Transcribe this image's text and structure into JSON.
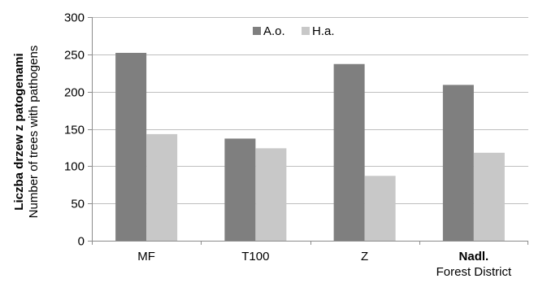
{
  "chart_data": {
    "type": "bar",
    "categories": [
      "MF",
      "T100",
      "Z",
      "Nadl."
    ],
    "category_sublabels": [
      "",
      "",
      "",
      "Forest District"
    ],
    "bold_categories": [
      "Nadl."
    ],
    "series": [
      {
        "name": "A.o.",
        "values": [
          252,
          137,
          237,
          209
        ],
        "color": "#7f7f7f"
      },
      {
        "name": "H.a.",
        "values": [
          143,
          124,
          87,
          118
        ],
        "color": "#c8c8c8"
      }
    ],
    "ylabel": "Liczba drzew z patogenami",
    "ylabel_secondary": "Number of trees with pathogens",
    "ylim": [
      0,
      300
    ],
    "yticks": [
      0,
      50,
      100,
      150,
      200,
      250,
      300
    ],
    "ytick_labels": [
      "0",
      "50",
      "100",
      "150",
      "200",
      "250",
      "300"
    ],
    "grid": true,
    "legend_position": "top-center"
  }
}
